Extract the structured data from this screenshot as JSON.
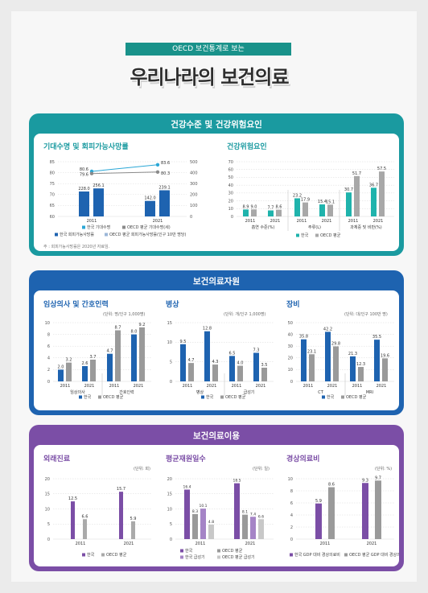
{
  "header": {
    "tag": "OECD 보건통계로 보는",
    "title": "우리나라의 보건의료"
  },
  "colors": {
    "teal": "#1a9aa0",
    "blue": "#1e63b0",
    "purple": "#7b4ea6",
    "kor_life": "#2aa7d6",
    "oecd_gray": "#9a9a9a",
    "risk_teal": "#1fb3ac"
  },
  "sections": [
    {
      "title": "건강수준 및 건강위험요인"
    },
    {
      "title": "보건의료자원"
    },
    {
      "title": "보건의료이용"
    }
  ],
  "s1": {
    "life": {
      "title": "기대수명 및 회피가능사망률",
      "legend": [
        "한국 기대수명",
        "OECD 평균 기대수명(세)",
        "한국 회피가능사망률",
        "OECD 평균 회피가능사망률(인구 10만 명당)"
      ],
      "note": "주 : 회피가능사망률은 2020년 자료임."
    },
    "risk": {
      "title": "건강위험요인",
      "group_labels": [
        "흡연 수준(%)",
        "주류(L)",
        "과체중 및 비만(%)"
      ],
      "legend": [
        "한국",
        "OECD 평균"
      ]
    }
  },
  "s2": {
    "doctors": {
      "title": "임상의사 및 간호인력",
      "unit": "(단위: 명/인구 1,000명)",
      "group_labels": [
        "임상의사",
        "간호인력"
      ]
    },
    "beds": {
      "title": "병상",
      "unit": "(단위: 개/인구 1,000명)",
      "group_labels": [
        "병상",
        "급성기"
      ]
    },
    "equip": {
      "title": "장비",
      "unit": "(단위: 대/인구 100만 명)",
      "group_labels": [
        "CT",
        "MRI"
      ]
    },
    "legend": [
      "한국",
      "OECD 평균"
    ]
  },
  "s3": {
    "visits": {
      "title": "외래진료",
      "unit": "(단위: 회)",
      "legend": [
        "한국",
        "OECD 평균"
      ]
    },
    "stay": {
      "title": "평균재원일수",
      "unit": "(단위: 일)",
      "legend": [
        "한국",
        "OECD 평균",
        "한국 급성기",
        "OECD 평균 급성기"
      ]
    },
    "spend": {
      "title": "경상의료비",
      "unit": "(단위: %)",
      "legend": [
        "한국 GDP 대비 경상의료비",
        "OECD 평균 GDP 대비 경상의료비"
      ]
    }
  },
  "chart_data": [
    {
      "id": "life_expectancy",
      "type": "line",
      "x": [
        "2011",
        "2021"
      ],
      "ylim": [
        60,
        85
      ],
      "series": [
        {
          "name": "한국 기대수명",
          "values": [
            80.6,
            83.6
          ]
        },
        {
          "name": "OECD 평균 기대수명(세)",
          "values": [
            79.6,
            80.3
          ]
        }
      ]
    },
    {
      "id": "avoidable_mortality",
      "type": "bar",
      "categories": [
        "2011",
        "2021"
      ],
      "ylim": [
        0,
        500
      ],
      "series": [
        {
          "name": "한국 회피가능사망률",
          "values": [
            228.0,
            142.0
          ]
        },
        {
          "name": "OECD 평균 회피가능사망률",
          "values": [
            256.1,
            239.1
          ]
        }
      ]
    },
    {
      "id": "risk_factors",
      "type": "bar",
      "categories": [
        "2011",
        "2021",
        "2011",
        "2021",
        "2011",
        "2021"
      ],
      "ylim": [
        0,
        70
      ],
      "series": [
        {
          "name": "한국",
          "values": [
            8.9,
            7.7,
            23.2,
            15.4,
            30.7,
            36.7
          ]
        },
        {
          "name": "OECD 평균",
          "values": [
            9.0,
            8.6,
            17.9,
            15.1,
            51.7,
            57.5
          ]
        }
      ]
    },
    {
      "id": "doctors_nurses",
      "type": "bar",
      "categories": [
        "2011",
        "2021",
        "2011",
        "2021"
      ],
      "ylim": [
        0,
        10
      ],
      "series": [
        {
          "name": "한국",
          "values": [
            2.0,
            2.6,
            4.7,
            8.0
          ]
        },
        {
          "name": "OECD 평균",
          "values": [
            3.2,
            3.7,
            8.7,
            9.2
          ]
        }
      ]
    },
    {
      "id": "beds",
      "type": "bar",
      "categories": [
        "2011",
        "2021",
        "2011",
        "2021"
      ],
      "ylim": [
        0,
        15
      ],
      "series": [
        {
          "name": "한국",
          "values": [
            9.5,
            12.8,
            6.5,
            7.3
          ]
        },
        {
          "name": "OECD 평균",
          "values": [
            4.7,
            4.3,
            4.0,
            3.5
          ]
        }
      ]
    },
    {
      "id": "equipment",
      "type": "bar",
      "categories": [
        "2011",
        "2021",
        "2011",
        "2021"
      ],
      "ylim": [
        0,
        50
      ],
      "series": [
        {
          "name": "한국",
          "values": [
            35.8,
            42.2,
            21.3,
            35.5
          ]
        },
        {
          "name": "OECD 평균",
          "values": [
            23.1,
            29.8,
            12.3,
            19.6
          ]
        }
      ]
    },
    {
      "id": "outpatient_visits",
      "type": "bar",
      "categories": [
        "2011",
        "2021"
      ],
      "ylim": [
        0,
        20
      ],
      "series": [
        {
          "name": "한국",
          "values": [
            12.5,
            15.7
          ]
        },
        {
          "name": "OECD 평균",
          "values": [
            6.6,
            5.9
          ]
        }
      ]
    },
    {
      "id": "avg_stay",
      "type": "bar",
      "categories": [
        "2011",
        "2021"
      ],
      "ylim": [
        0,
        20
      ],
      "series": [
        {
          "name": "한국",
          "values": [
            16.4,
            18.5
          ]
        },
        {
          "name": "OECD 평균",
          "values": [
            8.3,
            8.1
          ]
        },
        {
          "name": "한국 급성기",
          "values": [
            10.1,
            7.4
          ]
        },
        {
          "name": "OECD 평균 급성기",
          "values": [
            4.8,
            6.6
          ]
        }
      ]
    },
    {
      "id": "health_spending",
      "type": "bar",
      "categories": [
        "2011",
        "2021"
      ],
      "ylim": [
        0,
        10
      ],
      "series": [
        {
          "name": "한국 GDP 대비 경상의료비",
          "values": [
            5.9,
            9.3
          ]
        },
        {
          "name": "OECD 평균 GDP 대비 경상의료비",
          "values": [
            8.6,
            9.7
          ]
        }
      ]
    }
  ]
}
